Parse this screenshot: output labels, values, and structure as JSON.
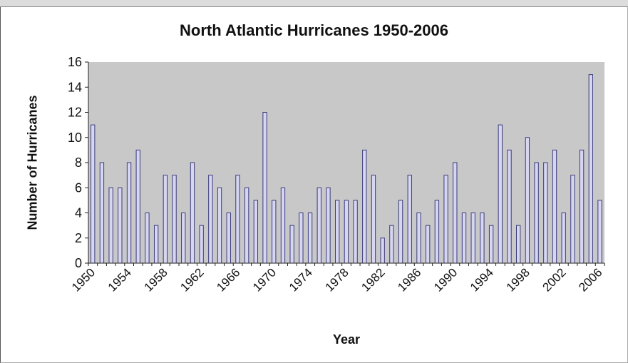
{
  "chart_data": {
    "type": "bar",
    "title": "North Atlantic Hurricanes 1950-2006",
    "xlabel": "Year",
    "ylabel": "Number of Hurricanes",
    "ylim": [
      0,
      16
    ],
    "yticks": [
      0,
      2,
      4,
      6,
      8,
      10,
      12,
      14,
      16
    ],
    "xtick_labels": [
      "1950",
      "1954",
      "1958",
      "1962",
      "1966",
      "1970",
      "1974",
      "1978",
      "1982",
      "1986",
      "1990",
      "1994",
      "1998",
      "2002",
      "2006"
    ],
    "grid": false,
    "legend": "none",
    "colors": {
      "plot_bg": "#c8c8c8",
      "bar_fill": "#d6d6f0",
      "bar_stroke": "#3b3b7a",
      "axis": "#222222"
    },
    "categories": [
      1950,
      1951,
      1952,
      1953,
      1954,
      1955,
      1956,
      1957,
      1958,
      1959,
      1960,
      1961,
      1962,
      1963,
      1964,
      1965,
      1966,
      1967,
      1968,
      1969,
      1970,
      1971,
      1972,
      1973,
      1974,
      1975,
      1976,
      1977,
      1978,
      1979,
      1980,
      1981,
      1982,
      1983,
      1984,
      1985,
      1986,
      1987,
      1988,
      1989,
      1990,
      1991,
      1992,
      1993,
      1994,
      1995,
      1996,
      1997,
      1998,
      1999,
      2000,
      2001,
      2002,
      2003,
      2004,
      2005,
      2006
    ],
    "values": [
      11,
      8,
      6,
      6,
      8,
      9,
      4,
      3,
      7,
      7,
      4,
      8,
      3,
      7,
      6,
      4,
      7,
      6,
      5,
      12,
      5,
      6,
      3,
      4,
      4,
      6,
      6,
      5,
      5,
      5,
      9,
      7,
      2,
      3,
      5,
      7,
      4,
      3,
      5,
      7,
      8,
      4,
      4,
      4,
      3,
      11,
      9,
      3,
      10,
      8,
      8,
      9,
      4,
      7,
      9,
      15,
      5
    ]
  }
}
